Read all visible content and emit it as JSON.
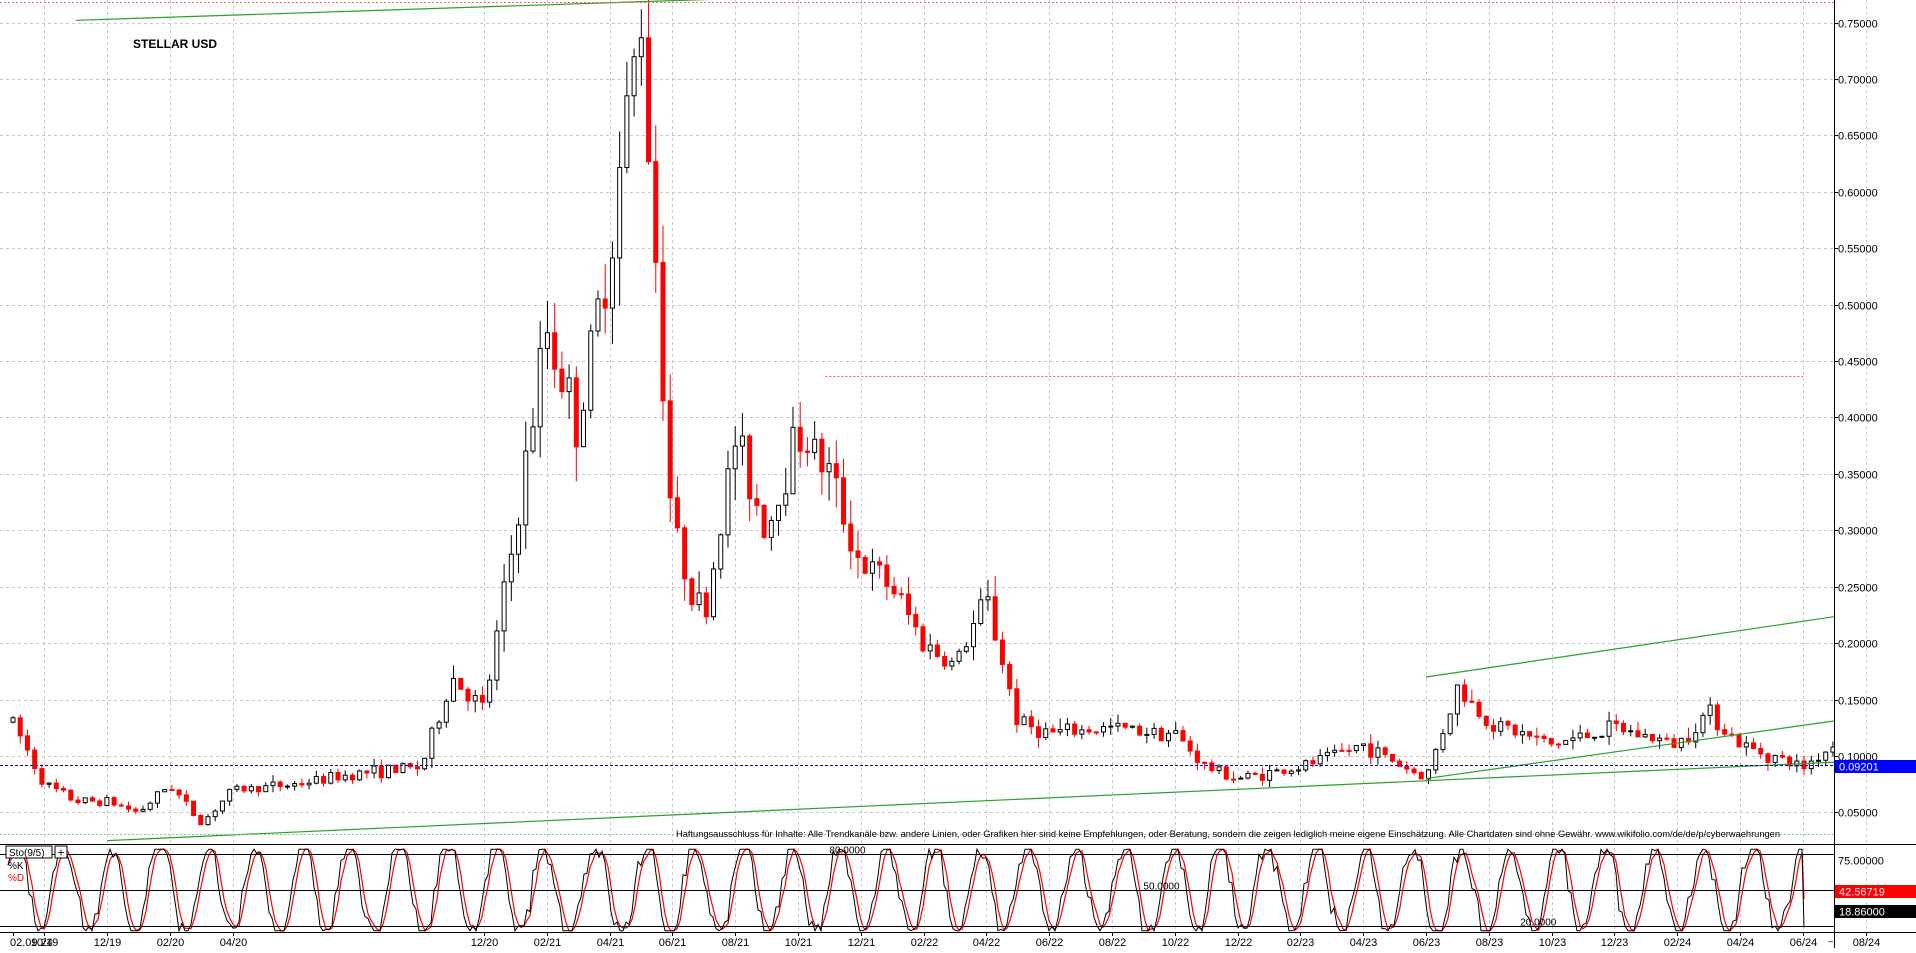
{
  "chart_data": [
    {
      "type": "candlestick",
      "title": "STELLAR USD",
      "x_tick_labels": [
        "02.09.24",
        "10/19",
        "12/19",
        "02/20",
        "04/20",
        "12/20",
        "02/21",
        "04/21",
        "06/21",
        "08/21",
        "10/21",
        "12/21",
        "02/22",
        "04/22",
        "06/22",
        "08/22",
        "10/22",
        "12/22",
        "02/23",
        "04/23",
        "06/23",
        "08/23",
        "10/23",
        "12/23",
        "02/24",
        "04/24",
        "06/24",
        "08/24"
      ],
      "y_tick_labels": [
        "0.75000",
        "0.70000",
        "0.65000",
        "0.60000",
        "0.55000",
        "0.50000",
        "0.45000",
        "0.40000",
        "0.35000",
        "0.30000",
        "0.25000",
        "0.20000",
        "0.15000",
        "0.10000",
        "0.05000"
      ],
      "ylim": [
        0.022,
        0.77
      ],
      "grid": true,
      "last_price": 0.09201,
      "last_price_label": "0.09201",
      "resistance_level": 0.437,
      "price_path": [
        {
          "x": "09/2019",
          "y": 0.13
        },
        {
          "x": "10/2019",
          "y": 0.075
        },
        {
          "x": "11/2019",
          "y": 0.06
        },
        {
          "x": "12/2019",
          "y": 0.06
        },
        {
          "x": "01/2020",
          "y": 0.05
        },
        {
          "x": "02/2020",
          "y": 0.075
        },
        {
          "x": "03/2020",
          "y": 0.04
        },
        {
          "x": "04/2020",
          "y": 0.07
        },
        {
          "x": "06/2020",
          "y": 0.075
        },
        {
          "x": "08/2020",
          "y": 0.085
        },
        {
          "x": "10/2020",
          "y": 0.09
        },
        {
          "x": "11/2020",
          "y": 0.17
        },
        {
          "x": "12/2020",
          "y": 0.14
        },
        {
          "x": "01/2021",
          "y": 0.3
        },
        {
          "x": "02/2021",
          "y": 0.48
        },
        {
          "x": "03/2021",
          "y": 0.39
        },
        {
          "x": "04/2021",
          "y": 0.55
        },
        {
          "x": "05/2021",
          "y": 0.76
        },
        {
          "x": "06/2021",
          "y": 0.3
        },
        {
          "x": "07/2021",
          "y": 0.22
        },
        {
          "x": "08/2021",
          "y": 0.38
        },
        {
          "x": "09/2021",
          "y": 0.3
        },
        {
          "x": "10/2021",
          "y": 0.39
        },
        {
          "x": "11/2021",
          "y": 0.35
        },
        {
          "x": "12/2021",
          "y": 0.27
        },
        {
          "x": "01/2022",
          "y": 0.25
        },
        {
          "x": "02/2022",
          "y": 0.2
        },
        {
          "x": "03/2022",
          "y": 0.18
        },
        {
          "x": "04/2022",
          "y": 0.24
        },
        {
          "x": "05/2022",
          "y": 0.13
        },
        {
          "x": "06/2022",
          "y": 0.12
        },
        {
          "x": "08/2022",
          "y": 0.125
        },
        {
          "x": "10/2022",
          "y": 0.12
        },
        {
          "x": "11/2022",
          "y": 0.09
        },
        {
          "x": "12/2022",
          "y": 0.08
        },
        {
          "x": "02/2023",
          "y": 0.09
        },
        {
          "x": "04/2023",
          "y": 0.11
        },
        {
          "x": "06/2023",
          "y": 0.08
        },
        {
          "x": "07/2023",
          "y": 0.16
        },
        {
          "x": "08/2023",
          "y": 0.13
        },
        {
          "x": "10/2023",
          "y": 0.11
        },
        {
          "x": "12/2023",
          "y": 0.125
        },
        {
          "x": "02/2024",
          "y": 0.11
        },
        {
          "x": "03/2024",
          "y": 0.14
        },
        {
          "x": "04/2024",
          "y": 0.11
        },
        {
          "x": "06/2024",
          "y": 0.09
        },
        {
          "x": "07/2024",
          "y": 0.11
        },
        {
          "x": "09/2024",
          "y": 0.092
        }
      ],
      "trendlines": [
        {
          "color": "#2e9e2e",
          "from": {
            "x": "12/2019",
            "y": 0.025
          },
          "to": {
            "x": "09/2024",
            "y": 0.098
          }
        },
        {
          "color": "#2e9e2e",
          "from": {
            "x": "06/2023",
            "y": 0.08
          },
          "to": {
            "x": "09/2024",
            "y": 0.142
          }
        },
        {
          "color": "#2e9e2e",
          "from": {
            "x": "06/2023",
            "y": 0.17
          },
          "to": {
            "x": "09/2024",
            "y": 0.235
          }
        },
        {
          "color": "#2e9e2e",
          "from": {
            "x": "11/2019",
            "y": 0.752
          },
          "to": {
            "x": "08/2021",
            "y": 0.772
          }
        }
      ],
      "disclaimer": "Haftungsausschluss für Inhalte: Alle Trendkanäle bzw. andere Linien, oder Grafiken hier sind keine Empfehlungen, oder Beratung, sondern die zeigen lediglich meine eigene Einschätzung. Alle Chartdaten sind ohne Gewähr. www.wikifolio.com/de/de/p/cyberwaehrungen",
      "colors": {
        "up": "#000000",
        "down": "#ff0000",
        "trend": "#2e9e2e",
        "last_price_bg": "#0000ff"
      }
    },
    {
      "type": "line",
      "title": "Sto(9/5)",
      "series": [
        {
          "name": "%K",
          "color": "#000000",
          "last_value": 18.86,
          "last_label": "18.86000"
        },
        {
          "name": "%D",
          "color": "#ff0000",
          "last_value": 42.56719,
          "last_label": "42.56719"
        }
      ],
      "levels": [
        {
          "value": 80,
          "label": "80.0000"
        },
        {
          "value": 50,
          "label": "50.0000"
        },
        {
          "value": 20,
          "label": "20.0000"
        }
      ],
      "y_tick_labels": [
        "75.00000",
        "50.00000"
      ],
      "ylim": [
        15,
        85
      ]
    }
  ],
  "toolbar": {
    "plus_symbol": "+"
  }
}
